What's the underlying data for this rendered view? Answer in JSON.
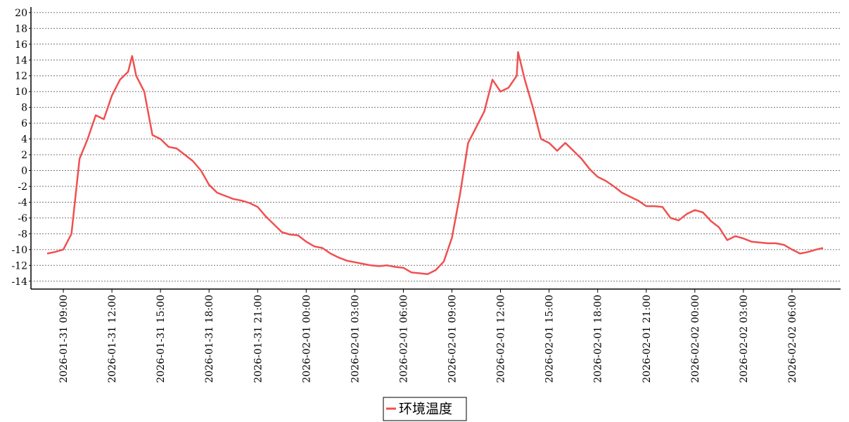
{
  "chart_data": {
    "type": "line",
    "x": [
      "2026-01-31 08:00",
      "2026-01-31 08:30",
      "2026-01-31 09:00",
      "2026-01-31 09:30",
      "2026-01-31 10:00",
      "2026-01-31 10:30",
      "2026-01-31 11:00",
      "2026-01-31 11:30",
      "2026-01-31 12:00",
      "2026-01-31 12:30",
      "2026-01-31 13:00",
      "2026-01-31 13:15",
      "2026-01-31 13:30",
      "2026-01-31 14:00",
      "2026-01-31 14:30",
      "2026-01-31 15:00",
      "2026-01-31 15:30",
      "2026-01-31 16:00",
      "2026-01-31 16:30",
      "2026-01-31 17:00",
      "2026-01-31 17:30",
      "2026-01-31 18:00",
      "2026-01-31 18:30",
      "2026-01-31 19:00",
      "2026-01-31 19:30",
      "2026-01-31 20:00",
      "2026-01-31 20:30",
      "2026-01-31 21:00",
      "2026-01-31 21:30",
      "2026-01-31 22:00",
      "2026-01-31 22:30",
      "2026-01-31 23:00",
      "2026-01-31 23:30",
      "2026-02-01 00:00",
      "2026-02-01 00:30",
      "2026-02-01 01:00",
      "2026-02-01 01:30",
      "2026-02-01 02:00",
      "2026-02-01 02:30",
      "2026-02-01 03:00",
      "2026-02-01 03:30",
      "2026-02-01 04:00",
      "2026-02-01 04:30",
      "2026-02-01 05:00",
      "2026-02-01 05:30",
      "2026-02-01 06:00",
      "2026-02-01 06:30",
      "2026-02-01 07:00",
      "2026-02-01 07:30",
      "2026-02-01 08:00",
      "2026-02-01 08:30",
      "2026-02-01 09:00",
      "2026-02-01 09:30",
      "2026-02-01 10:00",
      "2026-02-01 10:30",
      "2026-02-01 11:00",
      "2026-02-01 11:30",
      "2026-02-01 12:00",
      "2026-02-01 12:30",
      "2026-02-01 13:00",
      "2026-02-01 13:05",
      "2026-02-01 13:30",
      "2026-02-01 14:00",
      "2026-02-01 14:30",
      "2026-02-01 15:00",
      "2026-02-01 15:30",
      "2026-02-01 16:00",
      "2026-02-01 16:30",
      "2026-02-01 17:00",
      "2026-02-01 17:30",
      "2026-02-01 18:00",
      "2026-02-01 18:30",
      "2026-02-01 19:00",
      "2026-02-01 19:30",
      "2026-02-01 20:00",
      "2026-02-01 20:30",
      "2026-02-01 21:00",
      "2026-02-01 21:30",
      "2026-02-01 22:00",
      "2026-02-01 22:30",
      "2026-02-01 23:00",
      "2026-02-01 23:30",
      "2026-02-02 00:00",
      "2026-02-02 00:30",
      "2026-02-02 01:00",
      "2026-02-02 01:30",
      "2026-02-02 02:00",
      "2026-02-02 02:30",
      "2026-02-02 03:00",
      "2026-02-02 03:30",
      "2026-02-02 04:00",
      "2026-02-02 04:30",
      "2026-02-02 05:00",
      "2026-02-02 05:30",
      "2026-02-02 06:00",
      "2026-02-02 06:30",
      "2026-02-02 07:00",
      "2026-02-02 07:30",
      "2026-02-02 07:55"
    ],
    "series": [
      {
        "name": "环境温度",
        "color": "#f05050",
        "values": [
          -10.5,
          -10.3,
          -10,
          -8,
          1.5,
          4,
          7,
          6.5,
          9.5,
          11.5,
          12.5,
          14.5,
          12,
          10,
          4.5,
          4,
          3,
          2.8,
          2,
          1.2,
          0,
          -1.8,
          -2.8,
          -3.2,
          -3.6,
          -3.8,
          -4.1,
          -4.6,
          -5.8,
          -6.8,
          -7.8,
          -8.1,
          -8.2,
          -9,
          -9.6,
          -9.8,
          -10.5,
          -11,
          -11.4,
          -11.6,
          -11.8,
          -12,
          -12.1,
          -12,
          -12.2,
          -12.3,
          -12.9,
          -13,
          -13.1,
          -12.6,
          -11.5,
          -8.5,
          -3,
          3.5,
          5.5,
          7.5,
          11.5,
          10,
          10.5,
          12,
          15,
          11.5,
          8,
          4,
          3.5,
          2.5,
          3.5,
          2.5,
          1.5,
          0.2,
          -0.8,
          -1.3,
          -2,
          -2.8,
          -3.3,
          -3.8,
          -4.5,
          -4.5,
          -4.6,
          -6,
          -6.3,
          -5.5,
          -5,
          -5.3,
          -6.4,
          -7.2,
          -8.8,
          -8.3,
          -8.6,
          -9,
          -9.1,
          -9.2,
          -9.2,
          -9.4,
          -10,
          -10.5,
          -10.3,
          -10,
          -9.8
        ]
      }
    ],
    "xlim": [
      "2026-01-31 07:00",
      "2026-02-02 09:00"
    ],
    "xticks": [
      "2026-01-31 09:00",
      "2026-01-31 12:00",
      "2026-01-31 15:00",
      "2026-01-31 18:00",
      "2026-01-31 21:00",
      "2026-02-01 00:00",
      "2026-02-01 03:00",
      "2026-02-01 06:00",
      "2026-02-01 09:00",
      "2026-02-01 12:00",
      "2026-02-01 15:00",
      "2026-02-01 18:00",
      "2026-02-01 21:00",
      "2026-02-02 00:00",
      "2026-02-02 03:00",
      "2026-02-02 06:00"
    ],
    "ylim": [
      -15,
      20.7
    ],
    "yticks": [
      -14,
      -12,
      -10,
      -8,
      -6,
      -4,
      -2,
      0,
      2,
      4,
      6,
      8,
      10,
      12,
      14,
      16,
      18,
      20
    ],
    "grid": true
  }
}
